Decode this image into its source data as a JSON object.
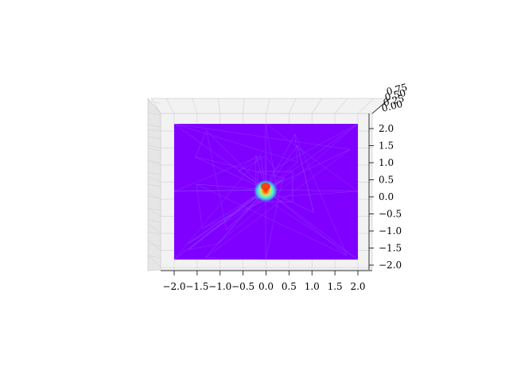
{
  "chart_data": {
    "type": "surface",
    "title": "",
    "xlabel": "",
    "ylabel": "",
    "zlabel": "",
    "xlim": [
      -2.0,
      2.0
    ],
    "ylim": [
      -2.0,
      2.0
    ],
    "zlim": [
      0.0,
      0.75
    ],
    "x_ticks": [
      "−2.0",
      "−1.5",
      "−1.0",
      "−0.5",
      "0.0",
      "0.5",
      "1.0",
      "1.5",
      "2.0"
    ],
    "y_ticks": [
      "−2.0",
      "−1.5",
      "−1.0",
      "−0.5",
      "0.0",
      "0.5",
      "1.0",
      "1.5",
      "2.0"
    ],
    "z_ticks": [
      "0.00",
      "0.25",
      "0.50",
      "0.75"
    ],
    "colormap": "rainbow",
    "base_color": "#7f00ff",
    "peak_color": "#ff2a00",
    "peak": {
      "x": 0.0,
      "y": 0.0,
      "z": 0.75
    },
    "grid": true
  }
}
